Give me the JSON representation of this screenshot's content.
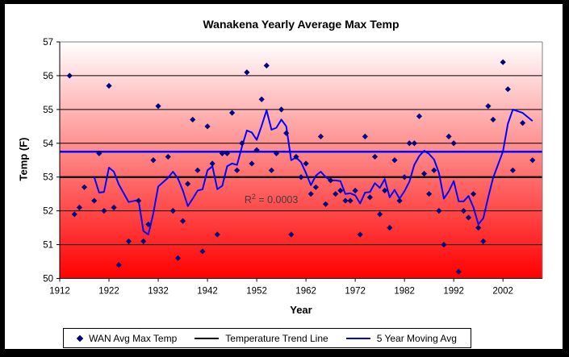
{
  "chart": {
    "title": "Wanakena Yearly Average Max Temp",
    "x_axis_title": "Year",
    "y_axis_title": "Temp (F)",
    "annotation": {
      "text_prefix": "R",
      "text_sup": "2",
      "text_suffix": " = 0.0003",
      "full_text": "R² = 0.0003",
      "color": "#404040",
      "x_year": 1949.5,
      "y_temp": 52.35
    }
  },
  "legend": {
    "items": [
      {
        "label": "WAN Avg Max Temp",
        "marker": "diamond",
        "color": "#000080"
      },
      {
        "label": "Temperature Trend Line",
        "marker": "line",
        "color": "#000000"
      },
      {
        "label": "5 Year Moving Avg",
        "marker": "line",
        "color": "#0000FF"
      }
    ]
  },
  "chart_data": {
    "type": "scatter",
    "title": "Wanakena Yearly Average Max Temp",
    "xlabel": "Year",
    "ylabel": "Temp (F)",
    "xlim": [
      1912,
      2010
    ],
    "ylim": [
      50,
      57
    ],
    "x_ticks": [
      1912,
      1922,
      1932,
      1942,
      1952,
      1962,
      1972,
      1982,
      1992,
      2002
    ],
    "y_ticks": [
      50,
      51,
      52,
      53,
      54,
      55,
      56,
      57
    ],
    "grid": "horizontal",
    "background_gradient": [
      "#FFFFFF",
      "#FF0000"
    ],
    "axis_color": "#000000",
    "plot_border_color": "#808080",
    "series": [
      {
        "name": "WAN Avg Max Temp",
        "type": "scatter",
        "marker": "diamond",
        "color": "#000080",
        "points": [
          [
            1914,
            56.0
          ],
          [
            1915,
            51.9
          ],
          [
            1916,
            52.1
          ],
          [
            1917,
            52.7
          ],
          [
            1919,
            52.3
          ],
          [
            1920,
            53.7
          ],
          [
            1921,
            52.0
          ],
          [
            1922,
            55.7
          ],
          [
            1923,
            52.1
          ],
          [
            1924,
            50.4
          ],
          [
            1926,
            51.1
          ],
          [
            1928,
            52.3
          ],
          [
            1929,
            51.1
          ],
          [
            1930,
            51.6
          ],
          [
            1931,
            53.5
          ],
          [
            1932,
            55.1
          ],
          [
            1934,
            53.6
          ],
          [
            1935,
            52.0
          ],
          [
            1936,
            50.6
          ],
          [
            1937,
            51.7
          ],
          [
            1938,
            52.8
          ],
          [
            1939,
            54.7
          ],
          [
            1940,
            53.2
          ],
          [
            1941,
            50.8
          ],
          [
            1942,
            54.5
          ],
          [
            1943,
            53.4
          ],
          [
            1944,
            51.3
          ],
          [
            1945,
            53.7
          ],
          [
            1946,
            53.7
          ],
          [
            1947,
            54.9
          ],
          [
            1948,
            53.2
          ],
          [
            1949,
            54.0
          ],
          [
            1950,
            56.1
          ],
          [
            1951,
            53.4
          ],
          [
            1952,
            53.8
          ],
          [
            1953,
            55.3
          ],
          [
            1954,
            56.3
          ],
          [
            1955,
            53.2
          ],
          [
            1956,
            53.7
          ],
          [
            1957,
            55.0
          ],
          [
            1958,
            54.3
          ],
          [
            1959,
            51.3
          ],
          [
            1960,
            53.6
          ],
          [
            1961,
            53.0
          ],
          [
            1962,
            53.4
          ],
          [
            1963,
            52.5
          ],
          [
            1964,
            52.7
          ],
          [
            1965,
            54.2
          ],
          [
            1966,
            52.2
          ],
          [
            1967,
            52.9
          ],
          [
            1968,
            52.5
          ],
          [
            1969,
            52.6
          ],
          [
            1970,
            52.3
          ],
          [
            1971,
            52.3
          ],
          [
            1972,
            52.6
          ],
          [
            1973,
            51.3
          ],
          [
            1974,
            54.2
          ],
          [
            1975,
            52.4
          ],
          [
            1976,
            53.6
          ],
          [
            1977,
            51.9
          ],
          [
            1978,
            52.6
          ],
          [
            1979,
            51.5
          ],
          [
            1980,
            53.5
          ],
          [
            1981,
            52.3
          ],
          [
            1982,
            53.0
          ],
          [
            1983,
            54.0
          ],
          [
            1984,
            54.0
          ],
          [
            1985,
            54.8
          ],
          [
            1986,
            53.1
          ],
          [
            1987,
            52.5
          ],
          [
            1988,
            53.2
          ],
          [
            1989,
            52.0
          ],
          [
            1990,
            51.0
          ],
          [
            1991,
            54.2
          ],
          [
            1992,
            54.0
          ],
          [
            1993,
            50.2
          ],
          [
            1994,
            52.0
          ],
          [
            1995,
            51.8
          ],
          [
            1996,
            52.5
          ],
          [
            1997,
            51.5
          ],
          [
            1998,
            51.1
          ],
          [
            1999,
            55.1
          ],
          [
            2000,
            54.7
          ],
          [
            2002,
            56.4
          ],
          [
            2003,
            55.6
          ],
          [
            2004,
            53.2
          ],
          [
            2006,
            54.6
          ],
          [
            2008,
            53.5
          ]
        ]
      },
      {
        "name": "Temperature Trend Line",
        "type": "horizontal_line",
        "color": "#000000",
        "width": 2.2,
        "value": 53.0,
        "r_squared": 0.0003
      },
      {
        "name": "5 Year Moving Avg",
        "type": "moving_average",
        "color": "#0000FF",
        "width": 2,
        "window": 5,
        "source": "WAN Avg Max Temp"
      },
      {
        "name": "Horizontal blue reference line",
        "type": "horizontal_line",
        "color": "#0000FF",
        "width": 2.5,
        "value": 53.75
      }
    ]
  }
}
